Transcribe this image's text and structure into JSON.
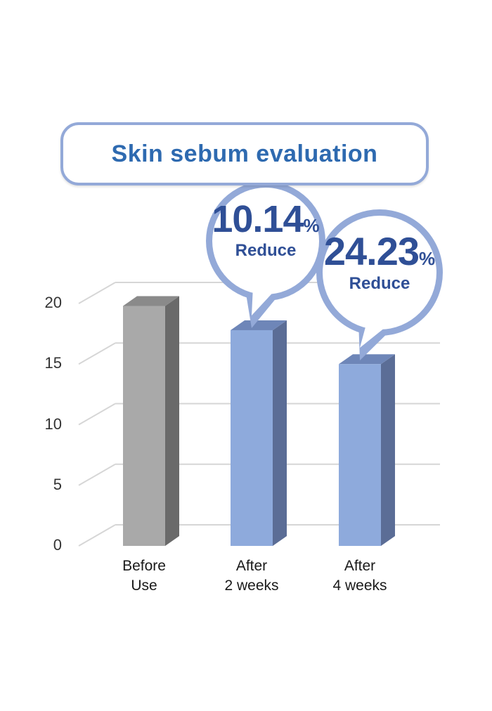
{
  "chart_data": {
    "type": "bar",
    "title": "Skin sebum evaluation",
    "categories": [
      "Before\nUse",
      "After\n2 weeks",
      "After\n4 weeks"
    ],
    "values": [
      19.8,
      17.8,
      15.0
    ],
    "ylim": [
      0,
      20
    ],
    "yticks": [
      "0",
      "5",
      "10",
      "15",
      "20"
    ],
    "grid": true,
    "annotations": [
      {
        "category_index": 1,
        "value": "10.14",
        "unit": "%",
        "label": "Reduce"
      },
      {
        "category_index": 2,
        "value": "24.23",
        "unit": "%",
        "label": "Reduce"
      }
    ]
  },
  "colors": {
    "bar_before": "#a9a9a9",
    "bar_before_side": "#6a6a6a",
    "bar_before_top": "#8a8a8a",
    "bar_after": "#8eaadc",
    "bar_after_side": "#5b6d96",
    "bar_after_top": "#6e86b8",
    "bubble_border": "#93a9d8",
    "text_blue": "#2f4f96"
  }
}
